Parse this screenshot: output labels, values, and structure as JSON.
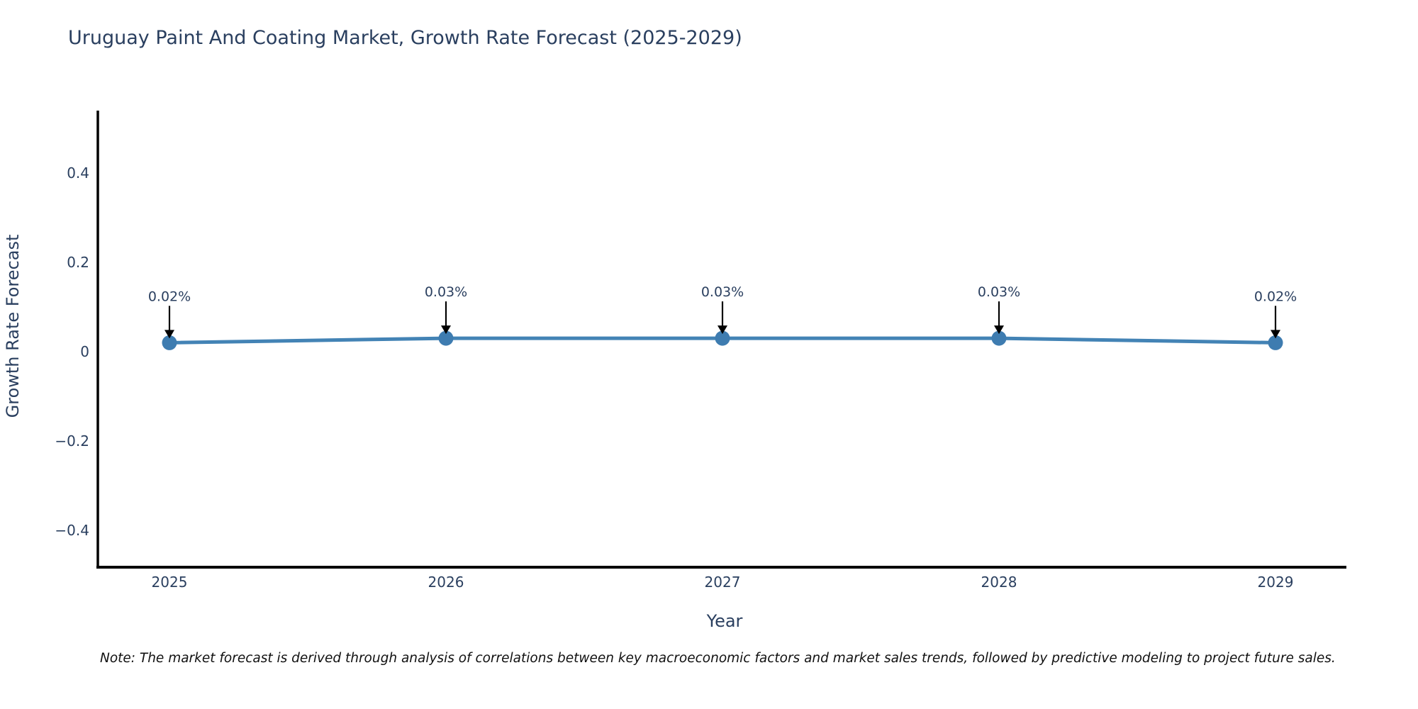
{
  "title": "Uruguay Paint And Coating Market, Growth Rate Forecast (2025-2029)",
  "note": "Note: The market forecast is derived through analysis of correlations between key macroeconomic factors and market sales trends, followed by predictive modeling to project future sales.",
  "chart_data": {
    "type": "line",
    "title": "Uruguay Paint And Coating Market, Growth Rate Forecast (2025-2029)",
    "xlabel": "Year",
    "ylabel": "Growth Rate Forecast",
    "x": [
      2025,
      2026,
      2027,
      2028,
      2029
    ],
    "series": [
      {
        "name": "Growth Rate Forecast",
        "values": [
          0.02,
          0.03,
          0.03,
          0.03,
          0.02
        ],
        "point_labels": [
          "0.02%",
          "0.03%",
          "0.03%",
          "0.03%",
          "0.02%"
        ]
      }
    ],
    "xtick_labels": [
      "2025",
      "2026",
      "2027",
      "2028",
      "2029"
    ],
    "ytick_values": [
      0.4,
      0.2,
      0,
      -0.2,
      -0.4
    ],
    "ytick_labels": [
      "0.4",
      "0.2",
      "0",
      "−0.2",
      "−0.4"
    ],
    "ylim": [
      -0.48,
      0.54
    ],
    "grid": false,
    "legend": false,
    "colors": {
      "line": "#4383b5",
      "marker": "#3e7cb0",
      "axis": "#000000",
      "text": "#2a3f5f",
      "annotation_arrow": "#000000"
    }
  }
}
